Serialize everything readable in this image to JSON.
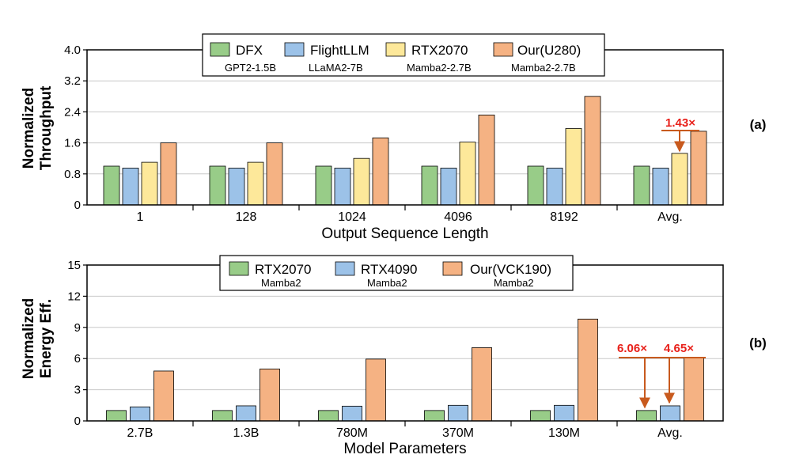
{
  "chart_data": [
    {
      "type": "bar",
      "panel_label": "(a)",
      "xlabel": "Output Sequence Length",
      "ylabel": [
        "Normalized",
        "Throughput"
      ],
      "ylim": [
        0,
        4.0
      ],
      "yticks": [
        "0",
        "0.8",
        "1.6",
        "2.4",
        "3.2",
        "4.0"
      ],
      "ytick_values": [
        0,
        0.8,
        1.6,
        2.4,
        3.2,
        4.0
      ],
      "categories": [
        "1",
        "128",
        "1024",
        "4096",
        "8192",
        "Avg."
      ],
      "series": [
        {
          "name": "DFX",
          "sub": "GPT2-1.5B",
          "color": "#98cc88",
          "values": [
            1.0,
            1.0,
            1.0,
            1.0,
            1.0,
            1.0
          ]
        },
        {
          "name": "FlightLLM",
          "sub": "LLaMA2-7B",
          "color": "#9cc2e8",
          "values": [
            0.95,
            0.95,
            0.95,
            0.95,
            0.95,
            0.95
          ]
        },
        {
          "name": "RTX2070",
          "sub": "Mamba2-2.7B",
          "color": "#fde89a",
          "values": [
            1.1,
            1.1,
            1.2,
            1.62,
            1.97,
            1.33
          ]
        },
        {
          "name": "Our(U280)",
          "sub": "Mamba2-2.7B",
          "color": "#f5b283",
          "values": [
            1.6,
            1.6,
            1.73,
            2.32,
            2.8,
            1.9
          ]
        }
      ],
      "annotations": [
        {
          "text": "1.43×",
          "color": "#e8201a"
        }
      ]
    },
    {
      "type": "bar",
      "panel_label": "(b)",
      "xlabel": "Model Parameters",
      "ylabel": [
        "Normalized",
        "Energy Eff."
      ],
      "ylim": [
        0,
        15
      ],
      "yticks": [
        "0",
        "3",
        "6",
        "9",
        "12",
        "15"
      ],
      "ytick_values": [
        0,
        3,
        6,
        9,
        12,
        15
      ],
      "categories": [
        "2.7B",
        "1.3B",
        "780M",
        "370M",
        "130M",
        "Avg."
      ],
      "series": [
        {
          "name": "RTX2070",
          "sub": "Mamba2",
          "color": "#98cc88",
          "values": [
            1.0,
            1.0,
            1.0,
            1.0,
            1.0,
            1.0
          ]
        },
        {
          "name": "RTX4090",
          "sub": "Mamba2",
          "color": "#9cc2e8",
          "values": [
            1.35,
            1.45,
            1.42,
            1.5,
            1.5,
            1.45
          ]
        },
        {
          "name": "Our(VCK190)",
          "sub": "Mamba2",
          "color": "#f5b283",
          "values": [
            4.8,
            5.0,
            5.95,
            7.05,
            9.8,
            6.06
          ]
        }
      ],
      "annotations": [
        {
          "text": "6.06×",
          "color": "#e8201a"
        },
        {
          "text": "4.65×",
          "color": "#e8201a"
        }
      ]
    }
  ]
}
